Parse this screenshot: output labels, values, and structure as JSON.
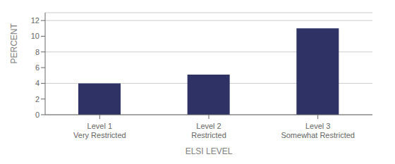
{
  "chart_data": {
    "type": "bar",
    "categories": [
      "Level 1\nVery Restricted",
      "Level 2\nRestricted",
      "Level 3\nSomewhat Restricted"
    ],
    "values": [
      4.0,
      5.1,
      11.0
    ],
    "color": "#2e3264",
    "xlabel": "ELSI LEVEL",
    "ylabel": "PERCENT",
    "ylim": [
      0,
      13
    ],
    "yticks": [
      0,
      2,
      4,
      6,
      8,
      10,
      12
    ],
    "grid": true
  }
}
